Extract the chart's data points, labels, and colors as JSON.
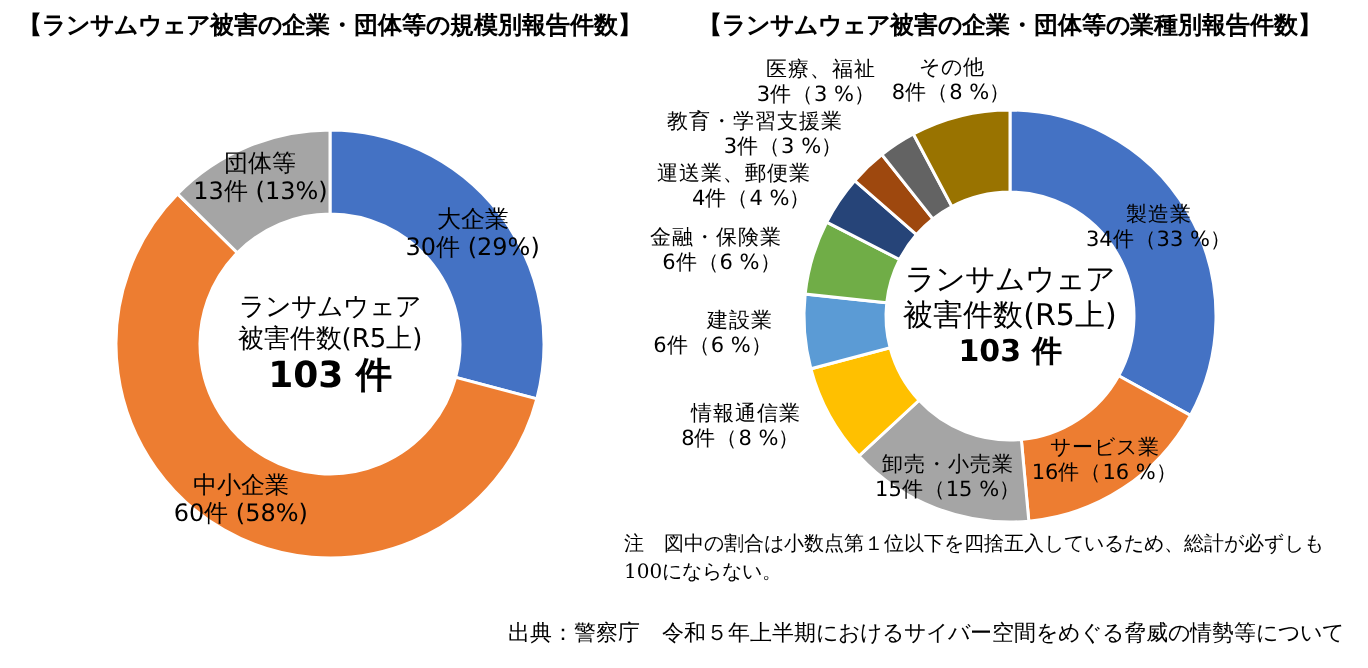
{
  "chart_data": [
    {
      "type": "donut",
      "title": "【ランサムウェア被害の企業・団体等の規模別報告件数】",
      "categories": [
        "大企業",
        "中小企業",
        "団体等"
      ],
      "values": [
        30,
        60,
        13
      ],
      "colors": [
        "#4472c4",
        "#ed7d31",
        "#a5a5a5"
      ],
      "value_labels": [
        "30件 (29%)",
        "60件 (58%)",
        "13件 (13%)"
      ],
      "annotations": [
        "ランサムウェア",
        "被害件数(R5上)",
        "103 件"
      ]
    },
    {
      "type": "donut",
      "title": "【ランサムウェア被害の企業・団体等の業種別報告件数】",
      "categories": [
        "製造業",
        "サービス業",
        "卸売・小売業",
        "情報通信業",
        "建設業",
        "金融・保険業",
        "運送業、郵便業",
        "教育・学習支援業",
        "医療、福祉",
        "その他"
      ],
      "values": [
        34,
        16,
        15,
        8,
        6,
        6,
        4,
        3,
        3,
        8
      ],
      "colors": [
        "#4472c4",
        "#ed7d31",
        "#a5a5a5",
        "#ffc000",
        "#5b9bd5",
        "#70ad47",
        "#264478",
        "#9e480e",
        "#636363",
        "#997300"
      ],
      "value_labels": [
        "34件（33 %）",
        "16件（16 %）",
        "15件（15 %）",
        "8件（8 %）",
        "6件（6 %）",
        "6件（6 %）",
        "4件（4 %）",
        "3件（3 %）",
        "3件（3 %）",
        "8件（8 %）"
      ],
      "annotations": [
        "ランサムウェア",
        "被害件数(R5上)",
        "103 件",
        "注　図中の割合は小数点第１位以下を四捨五入しているため、総計が必ずしも100にならない。",
        "出典：警察庁　令和５年上半期におけるサイバー空間をめぐる脅威の情勢等について"
      ]
    }
  ]
}
